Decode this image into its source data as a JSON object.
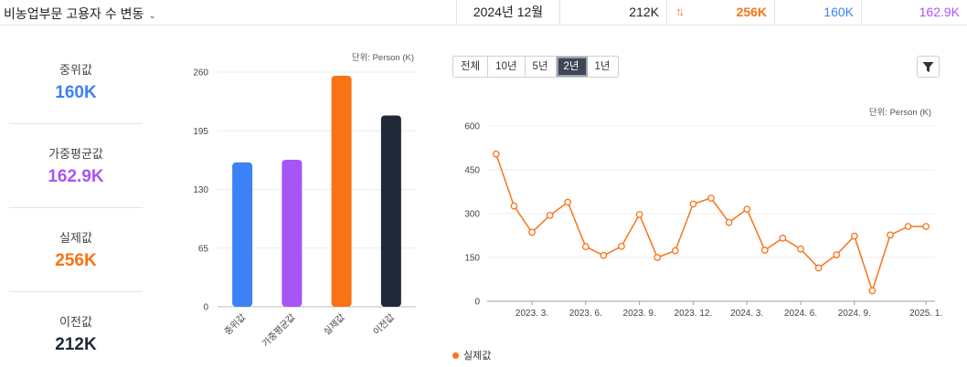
{
  "header": {
    "title": "비농업부문 고용자 수 변동",
    "date": "2024년 12월",
    "previous": "212K",
    "actual": "256K",
    "actual_arrow_icon": "up-arrows-icon",
    "median": "160K",
    "weighted_avg": "162.9K"
  },
  "stats": [
    {
      "label": "중위값",
      "value": "160K",
      "color": "#3b82f6"
    },
    {
      "label": "가중평균값",
      "value": "162.9K",
      "color": "#a855f7"
    },
    {
      "label": "실제값",
      "value": "256K",
      "color": "#f97316"
    },
    {
      "label": "이전값",
      "value": "212K",
      "color": "#1f2937"
    }
  ],
  "range_buttons": [
    {
      "label": "전체",
      "active": false
    },
    {
      "label": "10년",
      "active": false
    },
    {
      "label": "5년",
      "active": false
    },
    {
      "label": "2년",
      "active": true
    },
    {
      "label": "1년",
      "active": false
    }
  ],
  "filter_icon": "filter-icon",
  "colors": {
    "median": "#3b82f6",
    "weighted_avg": "#a855f7",
    "actual": "#f97316",
    "previous": "#1f2937"
  },
  "chart_data": [
    {
      "type": "bar",
      "unit": "단위: Person (K)",
      "categories": [
        "중위값",
        "가중평균값",
        "실제값",
        "이전값"
      ],
      "values": [
        160,
        162.9,
        256,
        212
      ],
      "colors": [
        "#3b82f6",
        "#a855f7",
        "#f97316",
        "#1f2937"
      ],
      "yticks": [
        0,
        65,
        130,
        195,
        260
      ],
      "ylim": [
        0,
        260
      ]
    },
    {
      "type": "line",
      "unit": "단위: Person (K)",
      "series": [
        {
          "name": "실제값",
          "color": "#f97316",
          "x": [
            "2023-01",
            "2023-02",
            "2023-03",
            "2023-04",
            "2023-05",
            "2023-06",
            "2023-07",
            "2023-08",
            "2023-09",
            "2023-10",
            "2023-11",
            "2023-12",
            "2024-01",
            "2024-02",
            "2024-03",
            "2024-04",
            "2024-05",
            "2024-06",
            "2024-07",
            "2024-08",
            "2024-09",
            "2024-10",
            "2024-11",
            "2024-12",
            "2025-01"
          ],
          "values": [
            504,
            326,
            236,
            294,
            339,
            187,
            157,
            188,
            297,
            150,
            173,
            333,
            353,
            270,
            315,
            175,
            216,
            179,
            114,
            159,
            223,
            36,
            227,
            256,
            256
          ]
        }
      ],
      "xtick_labels": [
        "2023. 3.",
        "2023. 6.",
        "2023. 9.",
        "2023. 12.",
        "2024. 3.",
        "2024. 6.",
        "2024. 9.",
        "2025. 1."
      ],
      "xtick_index": [
        2,
        5,
        8,
        11,
        14,
        17,
        20,
        24
      ],
      "yticks": [
        0,
        150,
        300,
        450,
        600
      ],
      "ylim": [
        0,
        600
      ]
    }
  ]
}
